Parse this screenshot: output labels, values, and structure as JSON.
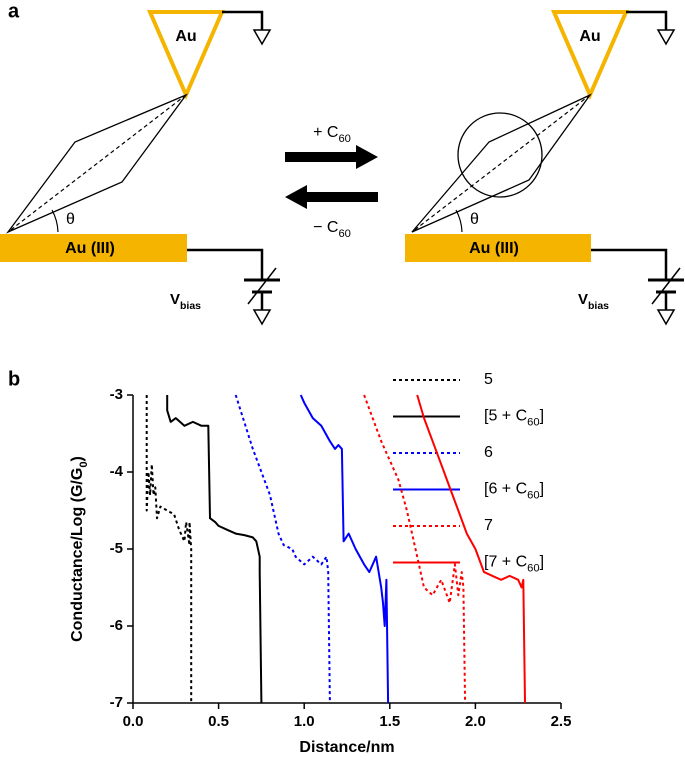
{
  "diagram": {
    "panel_label": "a",
    "left": {
      "tip": "Au",
      "substrate": "Au (III)",
      "angle": "θ",
      "bias": "Vbias"
    },
    "right": {
      "tip": "Au",
      "substrate": "Au (III)",
      "angle": "θ",
      "bias": "Vbias"
    },
    "forward": "+ C60",
    "reverse": "− C60"
  },
  "chart_data": {
    "type": "line",
    "panel_label": "b",
    "x_label": "Distance/nm",
    "y_label": "Conductance/Log (G/G0)",
    "xlim": [
      0,
      2.5
    ],
    "xticks": [
      {
        "value": 0,
        "label": "0.0"
      },
      0.5,
      {
        "value": 1,
        "label": "1.0"
      },
      1.5,
      {
        "value": 2,
        "label": "2.0"
      },
      2.5
    ],
    "ylim": [
      -7,
      -3
    ],
    "yticks": [
      -7,
      -6,
      -5,
      -4,
      -3
    ],
    "series": [
      {
        "name": "5",
        "color": "#000000",
        "dashed": true,
        "x": [
          0.08,
          0.08,
          0.09,
          0.1,
          0.11,
          0.12,
          0.13,
          0.14,
          0.16,
          0.2,
          0.24,
          0.27,
          0.3,
          0.31,
          0.33,
          0.33,
          0.34,
          0.34
        ],
        "values": [
          -3,
          -4.5,
          -4.0,
          -4.3,
          -3.9,
          -4.3,
          -4.2,
          -4.6,
          -4.45,
          -4.5,
          -4.55,
          -4.75,
          -4.9,
          -4.65,
          -4.95,
          -4.65,
          -5.0,
          -7
        ]
      },
      {
        "name": "[5 + C60]",
        "color": "#000000",
        "dashed": false,
        "x": [
          0.2,
          0.2,
          0.22,
          0.25,
          0.3,
          0.35,
          0.4,
          0.44,
          0.45,
          0.48,
          0.5,
          0.55,
          0.6,
          0.65,
          0.7,
          0.72,
          0.74,
          0.74,
          0.75
        ],
        "values": [
          -3,
          -3.2,
          -3.35,
          -3.3,
          -3.4,
          -3.35,
          -3.4,
          -3.4,
          -4.6,
          -4.65,
          -4.7,
          -4.75,
          -4.8,
          -4.82,
          -4.85,
          -4.9,
          -5.1,
          -5.3,
          -7
        ]
      },
      {
        "name": "6",
        "color": "#0000ff",
        "dashed": true,
        "x": [
          0.6,
          0.7,
          0.8,
          0.85,
          0.88,
          0.93,
          0.95,
          1.0,
          1.05,
          1.1,
          1.13,
          1.14,
          1.15
        ],
        "values": [
          -3,
          -3.7,
          -4.3,
          -4.8,
          -4.95,
          -5.0,
          -5.1,
          -5.2,
          -5.1,
          -5.2,
          -5.1,
          -5.3,
          -7
        ]
      },
      {
        "name": "[6 + C60]",
        "color": "#0000ff",
        "dashed": false,
        "x": [
          0.98,
          1.0,
          1.05,
          1.1,
          1.15,
          1.18,
          1.2,
          1.22,
          1.23,
          1.26,
          1.3,
          1.35,
          1.38,
          1.42,
          1.45,
          1.46,
          1.47,
          1.48,
          1.49
        ],
        "values": [
          -3,
          -3.1,
          -3.3,
          -3.4,
          -3.6,
          -3.7,
          -3.65,
          -3.7,
          -4.9,
          -4.8,
          -5.0,
          -5.2,
          -5.3,
          -5.1,
          -5.5,
          -5.7,
          -6.0,
          -5.4,
          -7
        ]
      },
      {
        "name": "7",
        "color": "#ff0000",
        "dashed": true,
        "x": [
          1.35,
          1.45,
          1.55,
          1.6,
          1.65,
          1.7,
          1.75,
          1.8,
          1.85,
          1.88,
          1.9,
          1.92,
          1.93,
          1.94
        ],
        "values": [
          -3,
          -3.6,
          -4.1,
          -4.5,
          -5.0,
          -5.5,
          -5.6,
          -5.4,
          -5.7,
          -5.2,
          -5.6,
          -5.3,
          -5.5,
          -7
        ]
      },
      {
        "name": "[7 + C60]",
        "color": "#ff0000",
        "dashed": false,
        "x": [
          1.66,
          1.7,
          1.75,
          1.8,
          1.85,
          1.9,
          1.95,
          2.0,
          2.05,
          2.1,
          2.15,
          2.2,
          2.25,
          2.27,
          2.28,
          2.29
        ],
        "values": [
          -3,
          -3.3,
          -3.6,
          -3.9,
          -4.2,
          -4.5,
          -4.8,
          -5.0,
          -5.3,
          -5.35,
          -5.4,
          -5.35,
          -5.4,
          -5.5,
          -5.4,
          -7
        ]
      }
    ]
  }
}
